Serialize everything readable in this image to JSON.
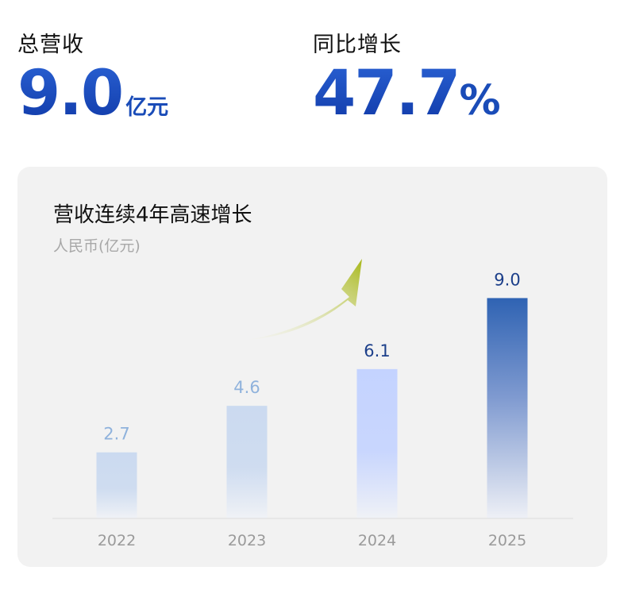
{
  "kpis": {
    "revenue": {
      "label": "总营收",
      "value": "9.0",
      "unit": "亿元"
    },
    "growth": {
      "label": "同比增长",
      "value": "47.7",
      "unit": "%"
    }
  },
  "card": {
    "title": "营收连续4年高速增长",
    "subtitle": "人民币(亿元)"
  },
  "chart_data": {
    "type": "bar",
    "title": "营收连续4年高速增长",
    "ylabel": "人民币(亿元)",
    "categories": [
      "2022",
      "2023",
      "2024",
      "2025"
    ],
    "values": [
      2.7,
      4.6,
      6.1,
      9.0
    ],
    "value_labels": [
      "2.7",
      "4.6",
      "6.1",
      "9.0"
    ],
    "ylim": [
      0,
      9.5
    ],
    "grid": false,
    "colors": {
      "label_faded": "#8fb2dc",
      "label_dark": "#1c3f8a",
      "bar_light_top": "#cbdaf0",
      "bar_mid_top": "#c4d3ff",
      "bar_dark_top": "#2f63b3",
      "arrow_start": "#f3f3e4",
      "arrow_end": "#a8b81a"
    }
  }
}
